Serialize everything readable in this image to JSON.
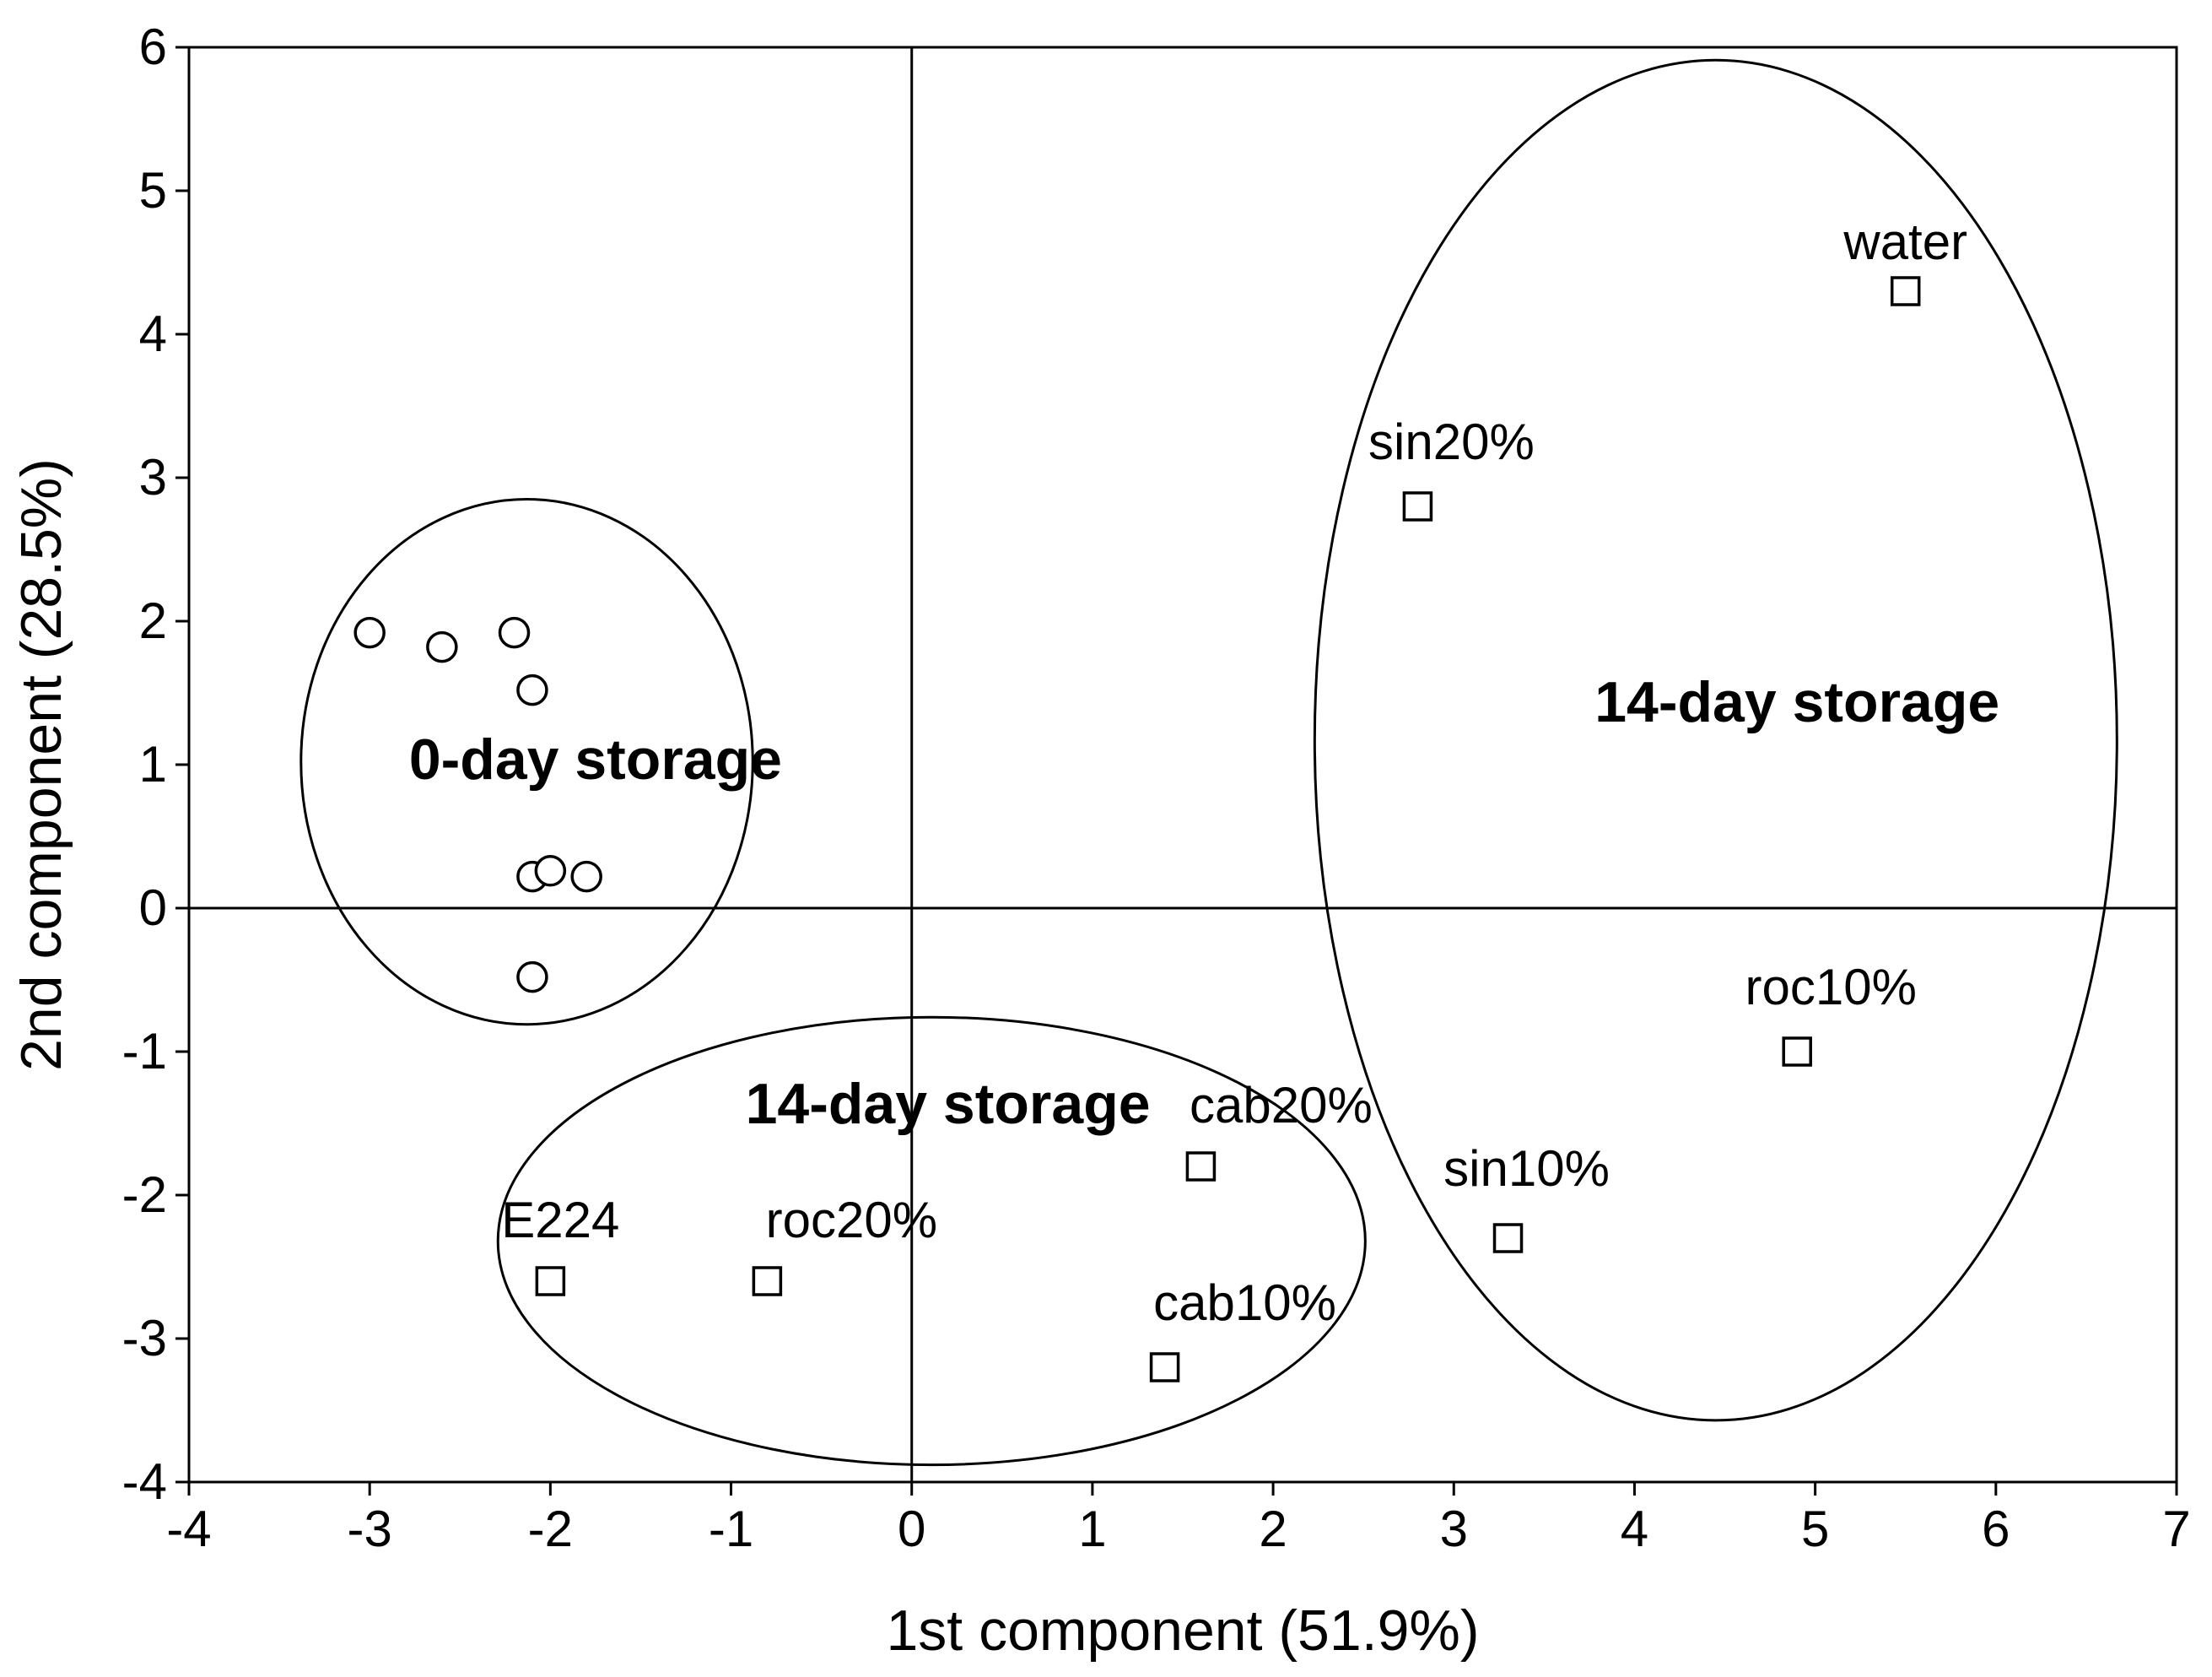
{
  "chart_data": {
    "type": "scatter",
    "title": "",
    "xlabel": "1st component (51.9%)",
    "ylabel": "2nd component (28.5%)",
    "xlim": [
      -4,
      7
    ],
    "ylim": [
      -4,
      6
    ],
    "x_ticks": [
      -4,
      -3,
      -2,
      -1,
      0,
      1,
      2,
      3,
      4,
      5,
      6,
      7
    ],
    "y_ticks": [
      -4,
      -3,
      -2,
      -1,
      0,
      1,
      2,
      3,
      4,
      5,
      6
    ],
    "x_tick_labels": [
      "-4",
      "-3",
      "-2",
      "-1",
      "0",
      "1",
      "2",
      "3",
      "4",
      "5",
      "6",
      "7"
    ],
    "y_tick_labels": [
      "-4",
      "-3",
      "-2",
      "-1",
      "0",
      "1",
      "2",
      "3",
      "4",
      "5",
      "6"
    ],
    "grid": false,
    "reference_lines": {
      "x": 0,
      "y": 0
    },
    "series": [
      {
        "marker": "circle",
        "points": [
          {
            "x": -3.0,
            "y": 1.92
          },
          {
            "x": -2.6,
            "y": 1.82
          },
          {
            "x": -2.2,
            "y": 1.92
          },
          {
            "x": -2.1,
            "y": 1.52
          },
          {
            "x": -2.1,
            "y": 0.22
          },
          {
            "x": -2.0,
            "y": 0.26
          },
          {
            "x": -1.8,
            "y": 0.22
          },
          {
            "x": -2.1,
            "y": -0.48
          }
        ]
      },
      {
        "marker": "square",
        "points": [
          {
            "x": 5.5,
            "y": 4.3,
            "label": "water"
          },
          {
            "x": 2.8,
            "y": 2.8,
            "label": "sin20%"
          },
          {
            "x": 4.9,
            "y": -1.0,
            "label": "roc10%"
          },
          {
            "x": 3.3,
            "y": -2.3,
            "label": "sin10%"
          },
          {
            "x": -2.0,
            "y": -2.6,
            "label": "E224"
          },
          {
            "x": -0.8,
            "y": -2.6,
            "label": "roc20%"
          },
          {
            "x": 1.6,
            "y": -1.8,
            "label": "cab20%"
          },
          {
            "x": 1.4,
            "y": -3.2,
            "label": "cab10%"
          }
        ]
      }
    ],
    "groups": [
      {
        "label": "0-day storage",
        "center": [
          -2.13,
          1.02
        ],
        "radii": [
          1.25,
          1.83
        ]
      },
      {
        "label": "14-day storage",
        "center": [
          0.11,
          -2.32
        ],
        "radii": [
          2.4,
          1.56
        ]
      },
      {
        "label": "14-day storage",
        "center": [
          4.45,
          1.17
        ],
        "radii": [
          2.22,
          4.74
        ]
      }
    ]
  }
}
